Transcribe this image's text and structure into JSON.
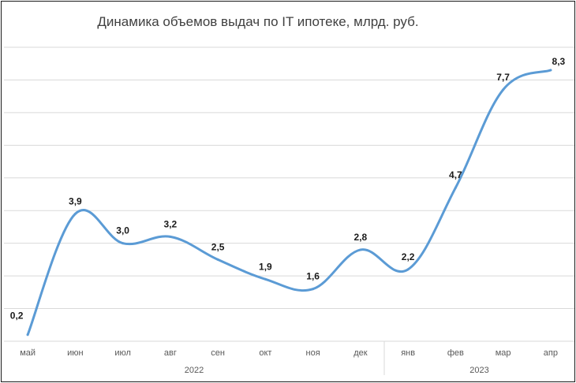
{
  "chart_data": {
    "type": "line",
    "title": "Динамика объемов выдач по IT ипотеке, млрд. руб.",
    "categories": [
      "май",
      "июн",
      "июл",
      "авг",
      "сен",
      "окт",
      "ноя",
      "дек",
      "янв",
      "фев",
      "мар",
      "апр"
    ],
    "year_groups": [
      {
        "label": "2022",
        "span": 8
      },
      {
        "label": "2023",
        "span": 4
      }
    ],
    "series": [
      {
        "values": [
          0.2,
          3.9,
          3.0,
          3.2,
          2.5,
          1.9,
          1.6,
          2.8,
          2.2,
          4.7,
          7.7,
          8.3
        ],
        "data_labels": [
          "0,2",
          "3,9",
          "3,0",
          "3,2",
          "2,5",
          "1,9",
          "1,6",
          "2,8",
          "2,2",
          "4,7",
          "7,7",
          "8,3"
        ],
        "color": "#5b9bd5"
      }
    ],
    "ylim": [
      0,
      9
    ],
    "grid": true,
    "legend": "none"
  }
}
